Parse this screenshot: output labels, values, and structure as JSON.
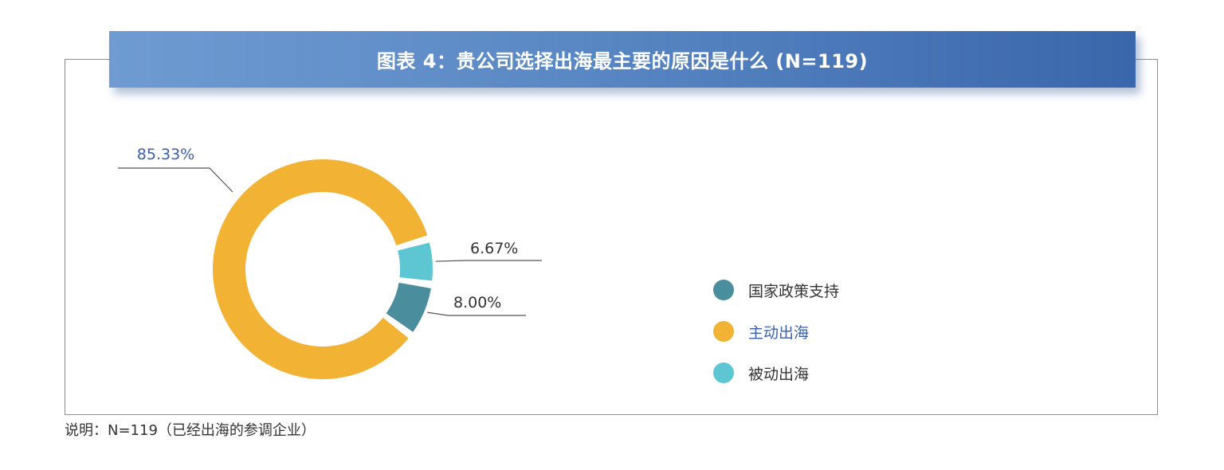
{
  "chart_data": {
    "type": "pie",
    "title": "图表 4：贵公司选择出海最主要的原因是什么 (N=119)",
    "categories": [
      "国家政策支持",
      "主动出海",
      "被动出海"
    ],
    "values": [
      8.0,
      85.33,
      6.67
    ],
    "value_labels": [
      "8.00%",
      "85.33%",
      "6.67%"
    ],
    "colors": [
      "#4a8e9e",
      "#f2b233",
      "#5ec6d2"
    ],
    "donut": true,
    "legend_position": "right"
  },
  "legend": {
    "items": [
      {
        "label": "国家政策支持",
        "color": "#4a8e9e"
      },
      {
        "label": "主动出海",
        "color": "#f2b233"
      },
      {
        "label": "被动出海",
        "color": "#5ec6d2"
      }
    ]
  },
  "note": "说明：N=119（已经出海的参调企业）",
  "colors": {
    "banner_start": "#6f9bd2",
    "banner_end": "#3a66ab",
    "label_text": "#3b5fa8",
    "leader_line": "#555555"
  }
}
